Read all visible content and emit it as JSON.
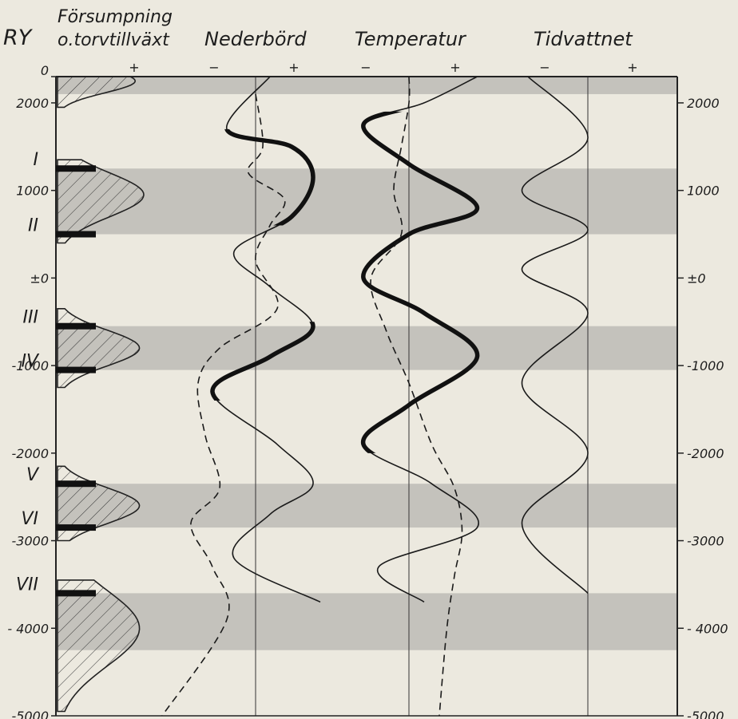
{
  "chart_data": {
    "type": "line",
    "headers": {
      "ry": "RY",
      "forsumpning": [
        "Försumpning",
        "o.torvtillväxt"
      ],
      "nederbord": "Nederbörd",
      "temperatur": "Temperatur",
      "tidvattnet": "Tidvattnet"
    },
    "sign_labels": {
      "forsumpning": [
        "+"
      ],
      "nederbord": [
        "−",
        "+"
      ],
      "temperatur": [
        "−",
        "+"
      ],
      "tidvattnet": [
        "−",
        "+"
      ]
    },
    "y_axis": {
      "range": [
        2300,
        -5000
      ],
      "left_ticks": [
        {
          "value": 2300,
          "label": "0"
        },
        {
          "value": 2000,
          "label": "2000"
        },
        {
          "value": 1000,
          "label": "1000"
        },
        {
          "value": 0,
          "label": "±0"
        },
        {
          "value": -1000,
          "label": "-1000"
        },
        {
          "value": -2000,
          "label": "-2000"
        },
        {
          "value": -3000,
          "label": "-3000"
        },
        {
          "value": -4000,
          "label": "- 4000"
        },
        {
          "value": -5000,
          "label": "-5000"
        }
      ],
      "right_ticks": [
        {
          "value": 2000,
          "label": "2000"
        },
        {
          "value": 1000,
          "label": "1000"
        },
        {
          "value": 0,
          "label": "±0"
        },
        {
          "value": -1000,
          "label": "-1000"
        },
        {
          "value": -2000,
          "label": "-2000"
        },
        {
          "value": -3000,
          "label": "-3000"
        },
        {
          "value": -4000,
          "label": "- 4000"
        },
        {
          "value": -5000,
          "label": "-5000"
        }
      ]
    },
    "recurrence_surfaces": [
      {
        "label": "I",
        "year": 1250
      },
      {
        "label": "II",
        "year": 500
      },
      {
        "label": "III",
        "year": -550
      },
      {
        "label": "IV",
        "year": -1050
      },
      {
        "label": "V",
        "year": -2350
      },
      {
        "label": "VI",
        "year": -2850
      },
      {
        "label": "VII",
        "year": -3600
      }
    ],
    "shaded_bands": [
      [
        2300,
        2100
      ],
      [
        1250,
        500
      ],
      [
        -550,
        -1050
      ],
      [
        -2350,
        -2850
      ],
      [
        -3600,
        -4250
      ]
    ],
    "forsumpning_peaks": [
      {
        "from": 2300,
        "to": 1950,
        "peak": 2250,
        "amp": 0.9
      },
      {
        "from": 1350,
        "to": 400,
        "peak": 950,
        "amp": 1.0
      },
      {
        "from": -350,
        "to": -1250,
        "peak": -800,
        "amp": 0.95
      },
      {
        "from": -2150,
        "to": -3000,
        "peak": -2600,
        "amp": 0.95
      },
      {
        "from": -3450,
        "to": -4950,
        "peak": -4000,
        "amp": 0.95
      }
    ],
    "series": [
      {
        "name": "Nederbörd",
        "style": "solid",
        "y": [
          2300,
          1700,
          1500,
          1150,
          700,
          300,
          -100,
          -550,
          -900,
          -1300,
          -1900,
          -2350,
          -2700,
          -3200,
          -3700
        ],
        "x": [
          0.2,
          -0.4,
          0.5,
          0.8,
          0.5,
          -0.3,
          0.2,
          0.8,
          0.2,
          -0.6,
          0.3,
          0.8,
          0.2,
          -0.3,
          0.9
        ],
        "bold_ranges": [
          [
            1700,
            600
          ],
          [
            -500,
            -1400
          ]
        ]
      },
      {
        "name": "Nederbörd (streckad)",
        "style": "dashed",
        "y": [
          2100,
          1500,
          1200,
          900,
          600,
          200,
          -350,
          -800,
          -1200,
          -1800,
          -2400,
          -2800,
          -3300,
          -3900,
          -5000
        ],
        "x": [
          0.0,
          0.1,
          -0.1,
          0.4,
          0.2,
          0.0,
          0.3,
          -0.5,
          -0.8,
          -0.7,
          -0.5,
          -0.9,
          -0.6,
          -0.4,
          -1.3
        ]
      },
      {
        "name": "Temperatur",
        "style": "solid",
        "y": [
          2300,
          2000,
          1750,
          1300,
          800,
          500,
          0,
          -400,
          -900,
          -1450,
          -1900,
          -2350,
          -2850,
          -3300,
          -3700
        ],
        "x": [
          0.9,
          0.2,
          -0.6,
          0.0,
          0.9,
          0.0,
          -0.6,
          0.2,
          0.9,
          0.0,
          -0.6,
          0.3,
          0.9,
          -0.4,
          0.2
        ],
        "bold_ranges": [
          [
            1900,
            -2000
          ]
        ]
      },
      {
        "name": "Temperatur (streckad)",
        "style": "dashed",
        "y": [
          2300,
          2000,
          1500,
          1000,
          500,
          0,
          -600,
          -1200,
          -1900,
          -2400,
          -2900,
          -3400,
          -4000,
          -5000
        ],
        "x": [
          0.0,
          0.0,
          -0.1,
          -0.2,
          -0.1,
          -0.5,
          -0.3,
          0.0,
          0.3,
          0.6,
          0.7,
          0.6,
          0.5,
          0.4
        ]
      },
      {
        "name": "Tidvattnet",
        "style": "solid",
        "y": [
          2300,
          1600,
          1000,
          550,
          100,
          -400,
          -1200,
          -2000,
          -2800,
          -3600
        ],
        "x": [
          -0.5,
          0.0,
          -0.55,
          0.0,
          -0.55,
          0.0,
          -0.55,
          0.0,
          -0.55,
          0.0
        ]
      }
    ]
  }
}
